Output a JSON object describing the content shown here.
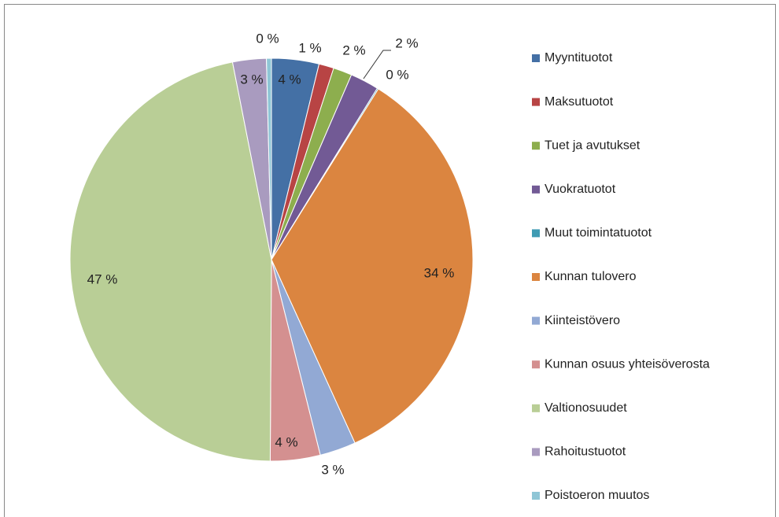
{
  "chart_data": {
    "type": "pie",
    "categories": [
      "Myyntituotot",
      "Maksutuotot",
      "Tuet ja avutukset",
      "Vuokratuotot",
      "Muut toimintatuotot",
      "Kunnan tulovero",
      "Kiinteistövero",
      "Kunnan osuus yhteisöverosta",
      "Valtionosuudet",
      "Rahoitustuotot",
      "Poistoeron muutos"
    ],
    "values": [
      3.8,
      1.2,
      1.5,
      2.3,
      0.1,
      34.3,
      2.9,
      4.0,
      46.8,
      2.7,
      0.4
    ],
    "value_labels": [
      "4 %",
      "1 %",
      "2 %",
      "2 %",
      "0 %",
      "34 %",
      "3 %",
      "4 %",
      "47 %",
      "3 %",
      "0 %"
    ],
    "colors": [
      "#4470A5",
      "#B84444",
      "#8DAE4E",
      "#725A95",
      "#3F9BB3",
      "#DB8540",
      "#92A9D4",
      "#D49090",
      "#B9CE96",
      "#A99BBF",
      "#8FC6D6"
    ],
    "legend": "right"
  }
}
